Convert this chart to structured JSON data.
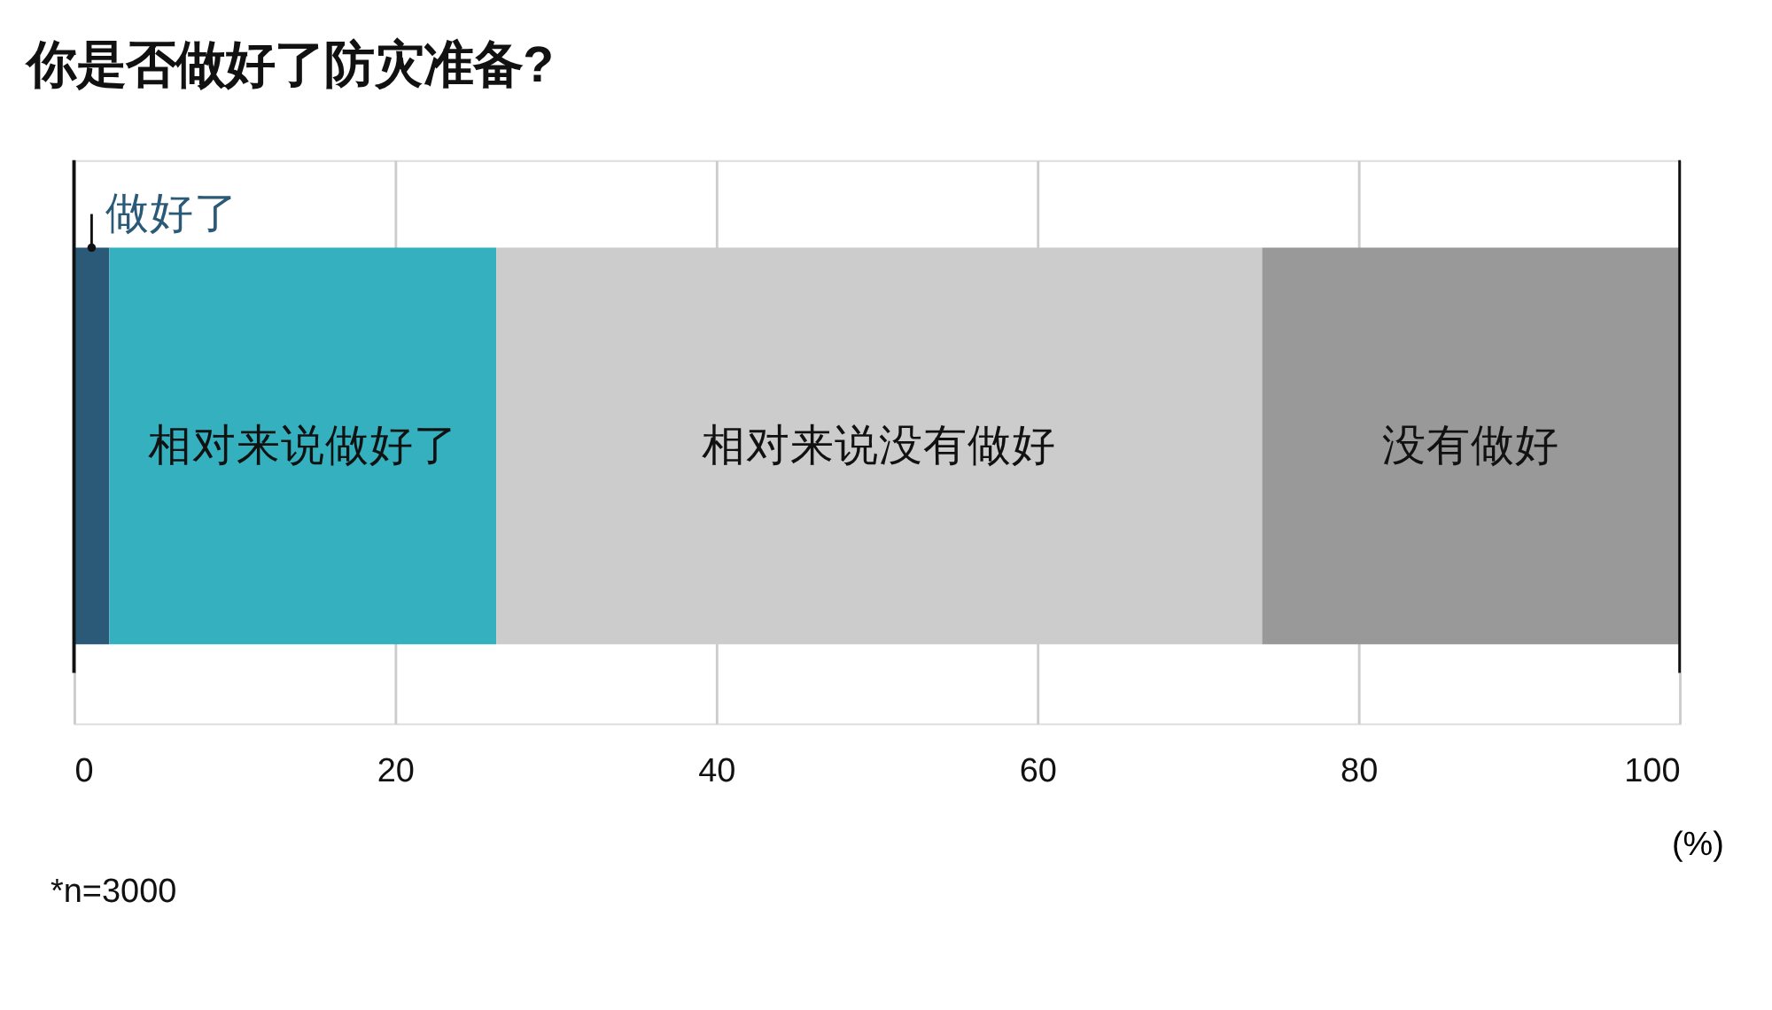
{
  "chart_data": {
    "type": "bar",
    "orientation": "horizontal",
    "stacked": true,
    "title": "你是否做好了防灾准备?",
    "categories": [
      null
    ],
    "series": [
      {
        "name": "做好了",
        "color": "#2a5a78",
        "values": [
          2.2
        ]
      },
      {
        "name": "相对来说做好了",
        "color": "#34b0bf",
        "values": [
          24.1
        ]
      },
      {
        "name": "相对来说没有做好",
        "color": "#cccccc",
        "values": [
          47.7
        ]
      },
      {
        "name": "没有做好",
        "color": "#999999",
        "values": [
          26.0
        ]
      }
    ],
    "xlim": [
      0,
      100
    ],
    "xticks": [
      0,
      20,
      40,
      60,
      80,
      100
    ],
    "xlabel": "(%)",
    "grid": "x",
    "legend": false,
    "annotations": [
      "*n=3000"
    ]
  }
}
